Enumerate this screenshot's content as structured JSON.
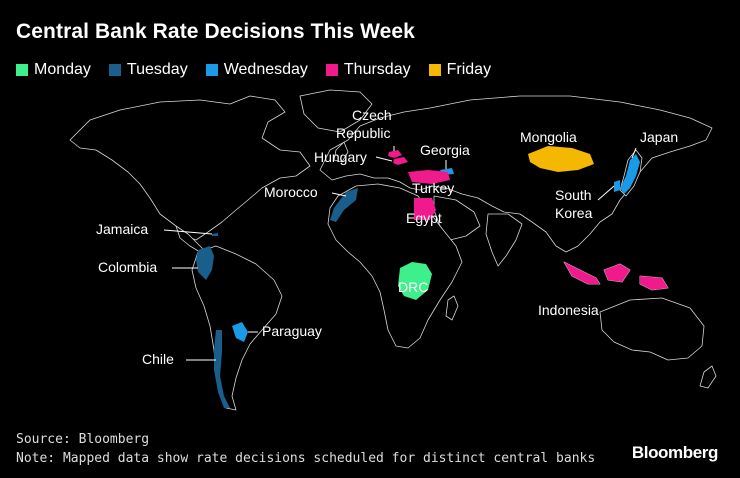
{
  "title": "Central Bank Rate Decisions This Week",
  "legend": [
    {
      "label": "Monday",
      "color": "#3ef08c"
    },
    {
      "label": "Tuesday",
      "color": "#1a5e8c"
    },
    {
      "label": "Wednesday",
      "color": "#1a9be8"
    },
    {
      "label": "Thursday",
      "color": "#f01a8c"
    },
    {
      "label": "Friday",
      "color": "#f5b800"
    }
  ],
  "countries": [
    {
      "name": "Czech Republic",
      "line1": "Czech",
      "line2": "Republic",
      "day": "Thursday"
    },
    {
      "name": "Hungary",
      "day": "Thursday"
    },
    {
      "name": "Georgia",
      "day": "Wednesday"
    },
    {
      "name": "Mongolia",
      "day": "Friday"
    },
    {
      "name": "Japan",
      "day": "Wednesday"
    },
    {
      "name": "Morocco",
      "day": "Tuesday"
    },
    {
      "name": "Turkey",
      "day": "Thursday"
    },
    {
      "name": "Egypt",
      "day": "Thursday"
    },
    {
      "name": "South Korea",
      "line1": "South",
      "line2": "Korea",
      "day": "Wednesday"
    },
    {
      "name": "Jamaica",
      "day": "Tuesday"
    },
    {
      "name": "Colombia",
      "day": "Tuesday"
    },
    {
      "name": "DRC",
      "day": "Monday"
    },
    {
      "name": "Indonesia",
      "day": "Thursday"
    },
    {
      "name": "Paraguay",
      "day": "Wednesday"
    },
    {
      "name": "Chile",
      "day": "Tuesday"
    }
  ],
  "source": "Source: Bloomberg",
  "note": "Note: Mapped data show rate decisions scheduled for distinct central banks",
  "brand": "Bloomberg"
}
